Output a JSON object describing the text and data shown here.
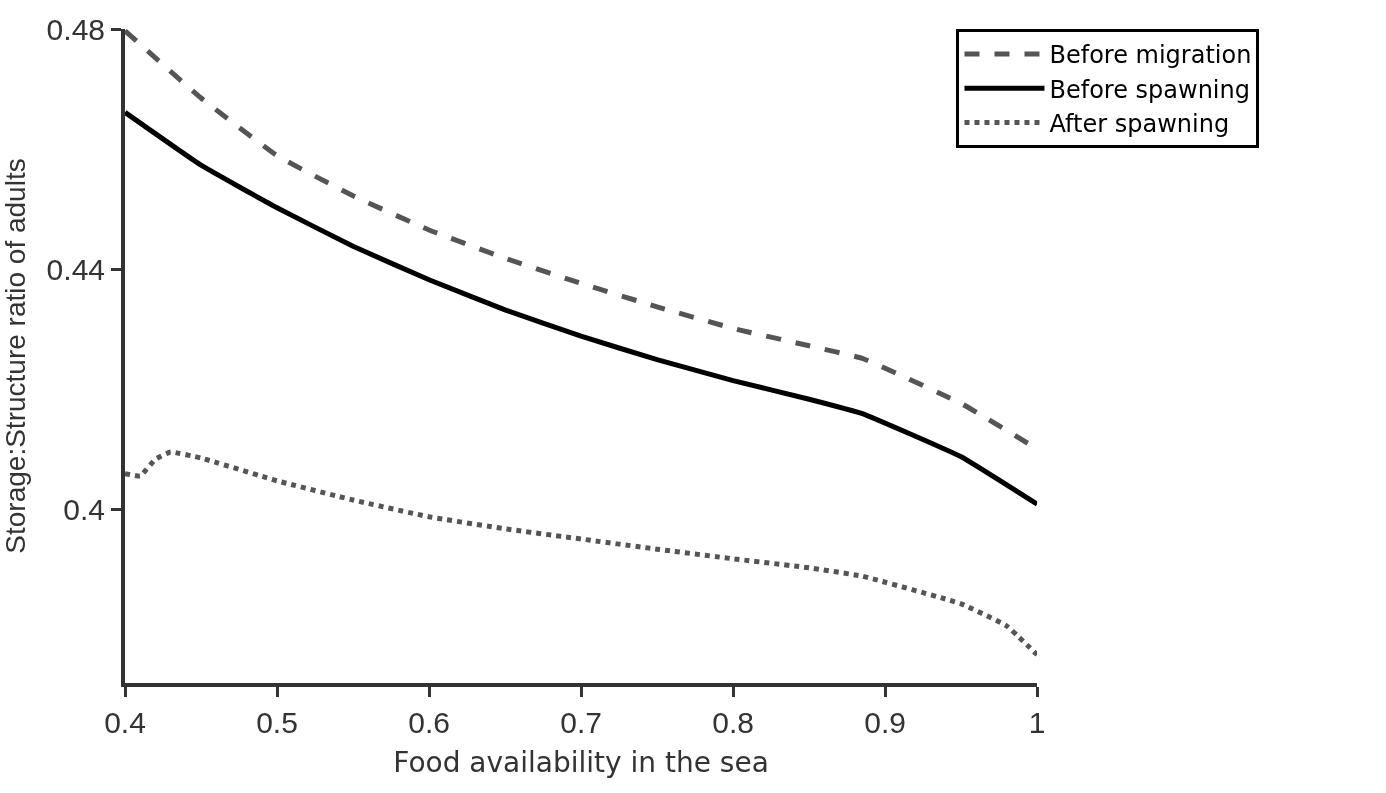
{
  "chart_data": {
    "type": "line",
    "xlabel": "Food availability in the sea",
    "ylabel": "Storage:Structure ratio of adults",
    "xlim": [
      0.4,
      1
    ],
    "xticks": [
      0.4,
      0.5,
      0.6,
      0.7,
      0.8,
      0.9,
      1
    ],
    "ylim": [
      0.371,
      0.48
    ],
    "yticks": [
      0.4,
      0.44,
      0.48
    ],
    "legend": "top right",
    "marker": "none",
    "series": [
      {
        "name": "Before migration",
        "color": "#555555",
        "line_style": "dashed",
        "x": [
          0.4,
          0.45,
          0.5,
          0.55,
          0.6,
          0.65,
          0.7,
          0.75,
          0.8,
          0.85,
          0.885,
          0.95,
          1.0
        ],
        "values": [
          0.4797,
          0.4685,
          0.4589,
          0.4522,
          0.4465,
          0.4418,
          0.4376,
          0.4337,
          0.4301,
          0.4272,
          0.4251,
          0.4176,
          0.41
        ]
      },
      {
        "name": "Before spawning",
        "color": "#000000",
        "line_style": "solid",
        "x": [
          0.4,
          0.45,
          0.5,
          0.55,
          0.6,
          0.65,
          0.7,
          0.75,
          0.8,
          0.85,
          0.885,
          0.95,
          1.0
        ],
        "values": [
          0.4661,
          0.4573,
          0.4502,
          0.4438,
          0.4382,
          0.4332,
          0.4288,
          0.4249,
          0.4214,
          0.4183,
          0.4159,
          0.4087,
          0.4008
        ]
      },
      {
        "name": "After spawning",
        "color": "#555555",
        "line_style": "dotted",
        "x": [
          0.4,
          0.41,
          0.42,
          0.43,
          0.45,
          0.5,
          0.55,
          0.6,
          0.65,
          0.7,
          0.75,
          0.8,
          0.85,
          0.885,
          0.95,
          0.98,
          1.0
        ],
        "values": [
          0.4059,
          0.4055,
          0.4083,
          0.4095,
          0.4085,
          0.4047,
          0.4015,
          0.3987,
          0.3967,
          0.395,
          0.3933,
          0.3917,
          0.3902,
          0.3888,
          0.3842,
          0.3805,
          0.3757
        ]
      }
    ]
  }
}
